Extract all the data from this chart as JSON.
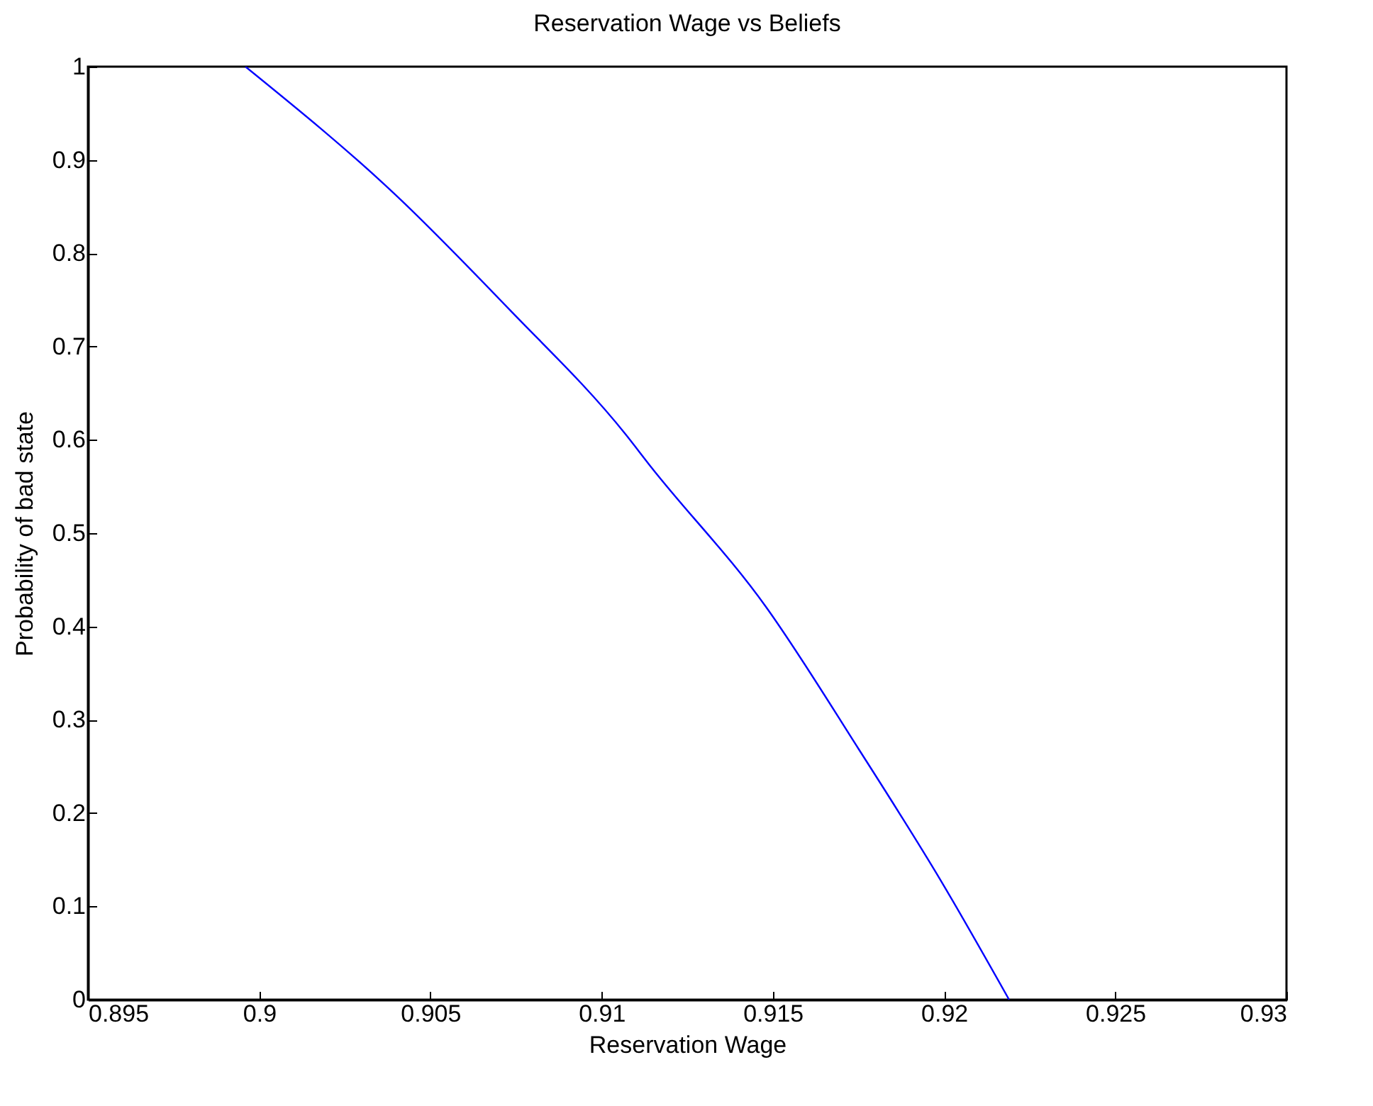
{
  "chart_data": {
    "type": "line",
    "title": "Reservation Wage vs Beliefs",
    "xlabel": "Reservation Wage",
    "ylabel": "Probability of bad state",
    "x": [
      0.8996,
      0.904,
      0.9073,
      0.9107,
      0.9114,
      0.9148,
      0.9175,
      0.9199,
      0.9219
    ],
    "series": [
      {
        "color": "#0000ff",
        "values": [
          1,
          0.862,
          0.74,
          0.606,
          0.573,
          0.421,
          0.269,
          0.128,
          0
        ]
      }
    ],
    "xlim": [
      0.895,
      0.93
    ],
    "xticks": [
      0.895,
      0.9,
      0.905,
      0.91,
      0.915,
      0.92,
      0.925,
      0.93
    ],
    "ylim": [
      0,
      1
    ],
    "yticks": [
      0,
      0.1,
      0.2,
      0.3,
      0.4,
      0.5,
      0.6,
      0.7,
      0.8,
      0.9,
      1
    ],
    "grid": false
  }
}
